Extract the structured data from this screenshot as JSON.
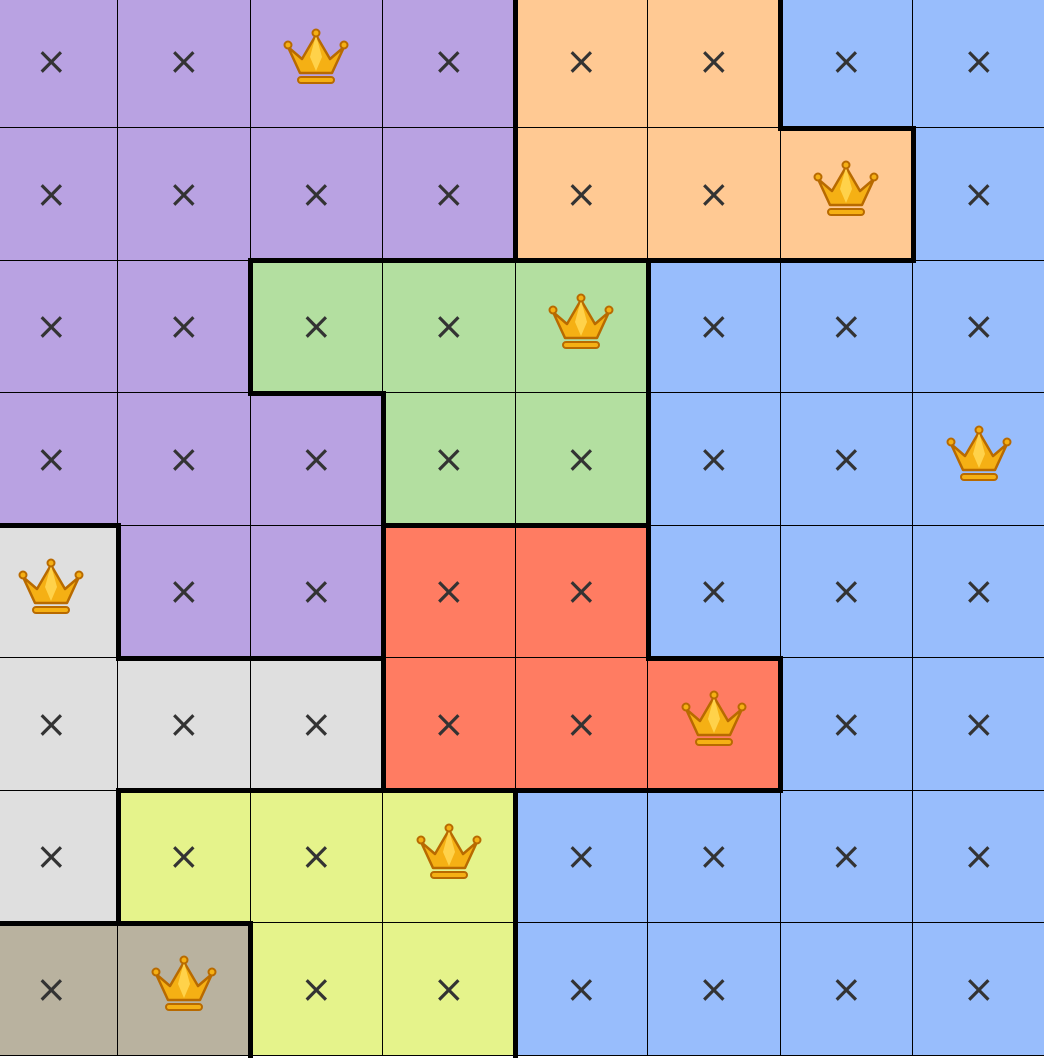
{
  "board": {
    "size": 8,
    "regions": [
      "PPPPOOBB",
      "PPPPOOOB",
      "PPGGGBBB",
      "PPPGGBBB",
      "WPPRRBBB",
      "WWWRRRBB",
      "WYYYBBBB",
      "TTYYBBBB"
    ],
    "marks": [
      "xxQxxxxx",
      "xxxxxxQx",
      "xxxxQxxx",
      "xxxxxxxQ",
      "Qxxxxxxx",
      "xxxxxQxx",
      "xxxQxxxx",
      "xQxxxxxx"
    ],
    "region_colors": {
      "P": "#b9a2e2",
      "O": "#ffc993",
      "B": "#98bdfc",
      "G": "#b3dfa0",
      "R": "#ff7c62",
      "W": "#dfdfdf",
      "Y": "#e5f38b",
      "T": "#b9b29f"
    },
    "x_symbol": "×",
    "queen_icon": "crown-icon"
  }
}
